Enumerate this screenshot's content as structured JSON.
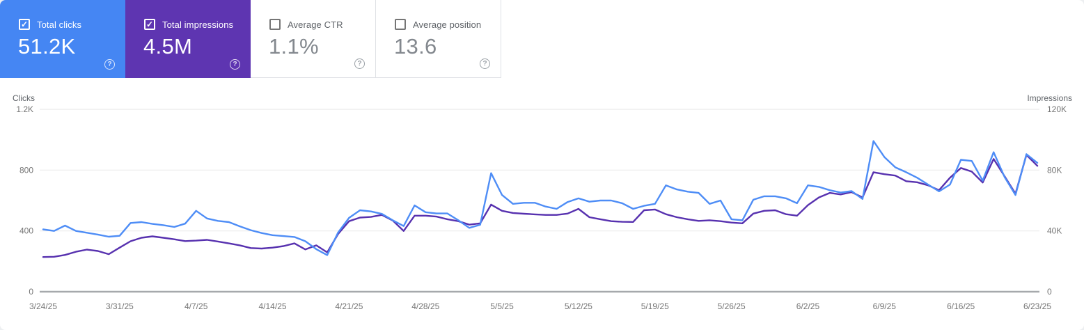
{
  "cards": [
    {
      "label": "Total clicks",
      "value": "51.2K",
      "checked": true,
      "accent": "#4586f3"
    },
    {
      "label": "Total impressions",
      "value": "4.5M",
      "checked": true,
      "accent": "#5e35b1"
    },
    {
      "label": "Average CTR",
      "value": "1.1%",
      "checked": false,
      "accent": null
    },
    {
      "label": "Average position",
      "value": "13.6",
      "checked": false,
      "accent": null
    }
  ],
  "help_glyph": "?",
  "check_glyph": "✓",
  "chart": {
    "left_axis": {
      "title": "Clicks",
      "ticks": [
        "1.2K",
        "800",
        "400",
        "0"
      ],
      "tick_values": [
        1200,
        800,
        400,
        0
      ],
      "max": 1200
    },
    "right_axis": {
      "title": "Impressions",
      "ticks": [
        "120K",
        "80K",
        "40K",
        "0"
      ],
      "tick_values": [
        120000,
        80000,
        40000,
        0
      ],
      "max": 120000
    },
    "x_labels": [
      "3/24/25",
      "3/31/25",
      "4/7/25",
      "4/14/25",
      "4/21/25",
      "4/28/25",
      "5/5/25",
      "5/12/25",
      "5/19/25",
      "5/26/25",
      "6/2/25",
      "6/9/25",
      "6/16/25",
      "6/23/25"
    ],
    "grid_color": "#ebebeb",
    "baseline_color": "#a6a9ac"
  },
  "chart_data": {
    "type": "line",
    "x": [
      "3/24/25",
      "3/25/25",
      "3/26/25",
      "3/27/25",
      "3/28/25",
      "3/29/25",
      "3/30/25",
      "3/31/25",
      "4/1/25",
      "4/2/25",
      "4/3/25",
      "4/4/25",
      "4/5/25",
      "4/6/25",
      "4/7/25",
      "4/8/25",
      "4/9/25",
      "4/10/25",
      "4/11/25",
      "4/12/25",
      "4/13/25",
      "4/14/25",
      "4/15/25",
      "4/16/25",
      "4/17/25",
      "4/18/25",
      "4/19/25",
      "4/20/25",
      "4/21/25",
      "4/22/25",
      "4/23/25",
      "4/24/25",
      "4/25/25",
      "4/26/25",
      "4/27/25",
      "4/28/25",
      "4/29/25",
      "4/30/25",
      "5/1/25",
      "5/2/25",
      "5/3/25",
      "5/4/25",
      "5/5/25",
      "5/6/25",
      "5/7/25",
      "5/8/25",
      "5/9/25",
      "5/10/25",
      "5/11/25",
      "5/12/25",
      "5/13/25",
      "5/14/25",
      "5/15/25",
      "5/16/25",
      "5/17/25",
      "5/18/25",
      "5/19/25",
      "5/20/25",
      "5/21/25",
      "5/22/25",
      "5/23/25",
      "5/24/25",
      "5/25/25",
      "5/26/25",
      "5/27/25",
      "5/28/25",
      "5/29/25",
      "5/30/25",
      "5/31/25",
      "6/1/25",
      "6/2/25",
      "6/3/25",
      "6/4/25",
      "6/5/25",
      "6/6/25",
      "6/7/25",
      "6/8/25",
      "6/9/25",
      "6/10/25",
      "6/11/25",
      "6/12/25",
      "6/13/25",
      "6/14/25",
      "6/15/25",
      "6/16/25",
      "6/17/25",
      "6/18/25",
      "6/19/25",
      "6/20/25",
      "6/21/25",
      "6/22/25",
      "6/23/25"
    ],
    "series": [
      {
        "name": "Total clicks",
        "axis": "left",
        "color": "#4e8df6",
        "values": [
          410,
          400,
          435,
          400,
          388,
          376,
          362,
          368,
          452,
          458,
          446,
          438,
          426,
          448,
          532,
          482,
          466,
          458,
          430,
          405,
          386,
          372,
          366,
          360,
          332,
          280,
          241,
          390,
          486,
          536,
          528,
          512,
          470,
          432,
          568,
          523,
          515,
          515,
          470,
          420,
          440,
          780,
          636,
          578,
          585,
          585,
          560,
          545,
          590,
          614,
          592,
          600,
          600,
          582,
          545,
          565,
          578,
          700,
          673,
          658,
          650,
          578,
          600,
          477,
          470,
          605,
          628,
          628,
          614,
          582,
          700,
          690,
          668,
          652,
          662,
          610,
          991,
          886,
          818,
          786,
          750,
          705,
          660,
          705,
          868,
          860,
          730,
          918,
          755,
          636,
          905,
          848
        ]
      },
      {
        "name": "Total impressions",
        "axis": "right",
        "color": "#5731af",
        "values": [
          22800,
          23000,
          24200,
          26300,
          27700,
          26800,
          24700,
          29000,
          33200,
          35500,
          36400,
          35500,
          34500,
          33300,
          33600,
          34100,
          33000,
          31800,
          30500,
          28700,
          28400,
          29000,
          30000,
          31800,
          27800,
          30500,
          25900,
          38000,
          46400,
          48800,
          49200,
          50500,
          46800,
          40000,
          50000,
          50000,
          49400,
          47700,
          46400,
          44100,
          45000,
          57300,
          53200,
          51800,
          51300,
          50900,
          50500,
          50500,
          51400,
          54500,
          49000,
          47700,
          46400,
          46000,
          45900,
          53600,
          54100,
          51000,
          49000,
          47700,
          46600,
          47000,
          46400,
          45500,
          45000,
          51400,
          53200,
          53600,
          51000,
          50000,
          57000,
          62000,
          65000,
          64000,
          65500,
          62000,
          78600,
          77300,
          76400,
          72700,
          72000,
          70000,
          66800,
          75000,
          81400,
          79000,
          71800,
          87300,
          76000,
          64500,
          90000,
          82800
        ]
      }
    ],
    "xlabel": "",
    "ylabel_left": "Clicks",
    "ylabel_right": "Impressions",
    "ylim_left": [
      0,
      1200
    ],
    "ylim_right": [
      0,
      120000
    ],
    "grid": "horizontal",
    "legend_position": "cards-top"
  }
}
